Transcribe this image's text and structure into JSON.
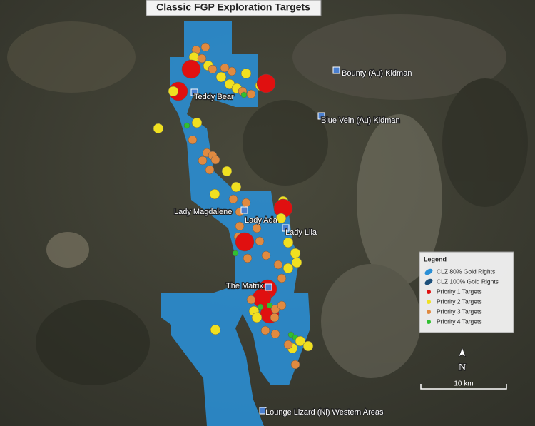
{
  "title": "Classic FGP Exploration Targets",
  "places": [
    "Bounty (Au) Kidman",
    "Teddy Bear",
    "Blue Vein (Au) Kidman",
    "Lady Magdalene",
    "Lady Ada",
    "Lady Lila",
    "The Matrix",
    "Lounge Lizard (Ni) Western Areas"
  ],
  "legend": {
    "title": "Legend",
    "items": [
      "CLZ 80% Gold Rights",
      "CLZ 100% Gold Rights",
      "Priority 1 Targets",
      "Priority 2 Targets",
      "Priority 3 Targets",
      "Priority 4 Targets"
    ]
  },
  "north": "N",
  "scale": "10 km"
}
